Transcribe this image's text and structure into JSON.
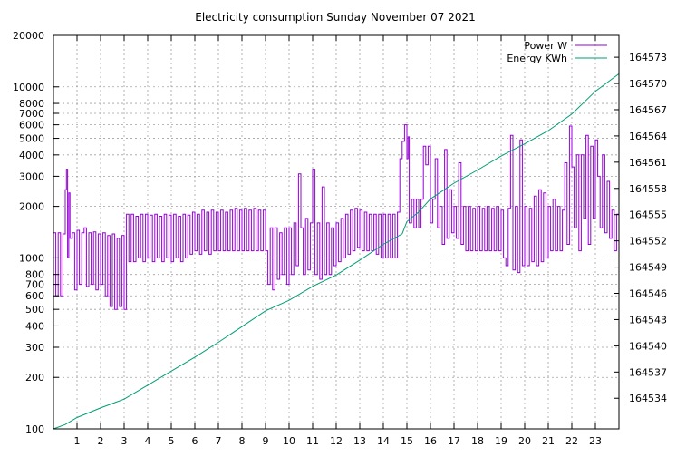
{
  "chart_data": {
    "type": "line",
    "title": "Electricity consumption Sunday November 07 2021",
    "legend_position": "top-right",
    "grid": true,
    "x": {
      "range": [
        0,
        24
      ],
      "tick_values": [
        1,
        2,
        3,
        4,
        5,
        6,
        7,
        8,
        9,
        10,
        11,
        12,
        13,
        14,
        15,
        16,
        17,
        18,
        19,
        20,
        21,
        22,
        23
      ],
      "tick_labels": [
        "1",
        "2",
        "3",
        "4",
        "5",
        "6",
        "7",
        "8",
        "9",
        "10",
        "11",
        "12",
        "13",
        "14",
        "15",
        "16",
        "17",
        "18",
        "19",
        "20",
        "21",
        "22",
        "23"
      ]
    },
    "y_left": {
      "scale": "log",
      "range": [
        100,
        20000
      ],
      "tick_values": [
        100,
        200,
        300,
        400,
        500,
        600,
        700,
        800,
        1000,
        2000,
        3000,
        4000,
        5000,
        6000,
        7000,
        8000,
        10000,
        20000
      ],
      "tick_labels": [
        "100",
        "200",
        "300",
        "400",
        "500",
        "600",
        "700",
        "800",
        "1000",
        "2000",
        "3000",
        "4000",
        "5000",
        "6000",
        "7000",
        "8000",
        "10000",
        "20000"
      ]
    },
    "y_right": {
      "scale": "linear",
      "range": [
        164530.5,
        164575.5
      ],
      "tick_values": [
        164534,
        164537,
        164540,
        164543,
        164546,
        164549,
        164552,
        164555,
        164558,
        164561,
        164564,
        164567,
        164570,
        164573
      ],
      "tick_labels": [
        "164534",
        "164537",
        "164540",
        "164543",
        "164546",
        "164549",
        "164552",
        "164555",
        "164558",
        "164561",
        "164564",
        "164567",
        "164570",
        "164573"
      ]
    },
    "series": [
      {
        "name": "Power W",
        "axis": "left",
        "color": "#9400d3",
        "style": "step",
        "points": [
          [
            0.0,
            1400
          ],
          [
            0.1,
            600
          ],
          [
            0.2,
            1400
          ],
          [
            0.3,
            600
          ],
          [
            0.4,
            1380
          ],
          [
            0.5,
            2500
          ],
          [
            0.55,
            3300
          ],
          [
            0.6,
            1000
          ],
          [
            0.65,
            2400
          ],
          [
            0.7,
            1300
          ],
          [
            0.8,
            1400
          ],
          [
            0.9,
            650
          ],
          [
            1.0,
            1450
          ],
          [
            1.1,
            700
          ],
          [
            1.2,
            1400
          ],
          [
            1.3,
            1500
          ],
          [
            1.4,
            680
          ],
          [
            1.5,
            1400
          ],
          [
            1.6,
            700
          ],
          [
            1.7,
            1420
          ],
          [
            1.8,
            650
          ],
          [
            1.9,
            1380
          ],
          [
            2.0,
            700
          ],
          [
            2.1,
            1400
          ],
          [
            2.2,
            600
          ],
          [
            2.3,
            1350
          ],
          [
            2.4,
            520
          ],
          [
            2.5,
            1380
          ],
          [
            2.6,
            500
          ],
          [
            2.7,
            1300
          ],
          [
            2.8,
            520
          ],
          [
            2.9,
            1350
          ],
          [
            3.0,
            500
          ],
          [
            3.1,
            1800
          ],
          [
            3.2,
            950
          ],
          [
            3.3,
            1800
          ],
          [
            3.4,
            950
          ],
          [
            3.5,
            1750
          ],
          [
            3.6,
            1000
          ],
          [
            3.7,
            1800
          ],
          [
            3.8,
            950
          ],
          [
            3.9,
            1800
          ],
          [
            4.0,
            1000
          ],
          [
            4.1,
            1780
          ],
          [
            4.2,
            950
          ],
          [
            4.3,
            1800
          ],
          [
            4.4,
            1000
          ],
          [
            4.5,
            1750
          ],
          [
            4.6,
            950
          ],
          [
            4.7,
            1800
          ],
          [
            4.8,
            1000
          ],
          [
            4.9,
            1780
          ],
          [
            5.0,
            950
          ],
          [
            5.1,
            1800
          ],
          [
            5.2,
            1000
          ],
          [
            5.3,
            1750
          ],
          [
            5.4,
            950
          ],
          [
            5.5,
            1800
          ],
          [
            5.6,
            1000
          ],
          [
            5.7,
            1780
          ],
          [
            5.8,
            1050
          ],
          [
            5.9,
            1850
          ],
          [
            6.0,
            1100
          ],
          [
            6.1,
            1800
          ],
          [
            6.2,
            1050
          ],
          [
            6.3,
            1900
          ],
          [
            6.4,
            1100
          ],
          [
            6.5,
            1850
          ],
          [
            6.6,
            1050
          ],
          [
            6.7,
            1900
          ],
          [
            6.8,
            1100
          ],
          [
            6.9,
            1850
          ],
          [
            7.0,
            1100
          ],
          [
            7.1,
            1900
          ],
          [
            7.2,
            1100
          ],
          [
            7.3,
            1850
          ],
          [
            7.4,
            1100
          ],
          [
            7.5,
            1900
          ],
          [
            7.6,
            1100
          ],
          [
            7.7,
            1950
          ],
          [
            7.8,
            1100
          ],
          [
            7.9,
            1900
          ],
          [
            8.0,
            1100
          ],
          [
            8.1,
            1950
          ],
          [
            8.2,
            1100
          ],
          [
            8.3,
            1900
          ],
          [
            8.4,
            1100
          ],
          [
            8.5,
            1950
          ],
          [
            8.6,
            1100
          ],
          [
            8.7,
            1900
          ],
          [
            8.8,
            1100
          ],
          [
            8.9,
            1900
          ],
          [
            9.0,
            1100
          ],
          [
            9.1,
            700
          ],
          [
            9.2,
            1500
          ],
          [
            9.3,
            650
          ],
          [
            9.4,
            1500
          ],
          [
            9.5,
            750
          ],
          [
            9.6,
            1400
          ],
          [
            9.7,
            800
          ],
          [
            9.8,
            1500
          ],
          [
            9.9,
            700
          ],
          [
            10.0,
            1500
          ],
          [
            10.1,
            800
          ],
          [
            10.2,
            1600
          ],
          [
            10.3,
            900
          ],
          [
            10.4,
            3100
          ],
          [
            10.5,
            1500
          ],
          [
            10.6,
            800
          ],
          [
            10.7,
            1700
          ],
          [
            10.8,
            850
          ],
          [
            10.9,
            1600
          ],
          [
            11.0,
            3300
          ],
          [
            11.1,
            800
          ],
          [
            11.2,
            1600
          ],
          [
            11.3,
            750
          ],
          [
            11.4,
            2600
          ],
          [
            11.5,
            800
          ],
          [
            11.6,
            1600
          ],
          [
            11.7,
            800
          ],
          [
            11.8,
            1500
          ],
          [
            11.9,
            900
          ],
          [
            12.0,
            1600
          ],
          [
            12.1,
            950
          ],
          [
            12.2,
            1700
          ],
          [
            12.3,
            1000
          ],
          [
            12.4,
            1800
          ],
          [
            12.5,
            1050
          ],
          [
            12.6,
            1900
          ],
          [
            12.7,
            1100
          ],
          [
            12.8,
            1950
          ],
          [
            12.9,
            1150
          ],
          [
            13.0,
            1900
          ],
          [
            13.1,
            1100
          ],
          [
            13.2,
            1850
          ],
          [
            13.3,
            1100
          ],
          [
            13.4,
            1800
          ],
          [
            13.5,
            1100
          ],
          [
            13.6,
            1800
          ],
          [
            13.7,
            1050
          ],
          [
            13.8,
            1800
          ],
          [
            13.9,
            1000
          ],
          [
            14.0,
            1800
          ],
          [
            14.1,
            1000
          ],
          [
            14.2,
            1800
          ],
          [
            14.3,
            1000
          ],
          [
            14.4,
            1800
          ],
          [
            14.5,
            1000
          ],
          [
            14.6,
            1850
          ],
          [
            14.7,
            3800
          ],
          [
            14.8,
            4800
          ],
          [
            14.9,
            6000
          ],
          [
            15.0,
            3800
          ],
          [
            15.05,
            5100
          ],
          [
            15.1,
            1600
          ],
          [
            15.2,
            2200
          ],
          [
            15.3,
            1500
          ],
          [
            15.4,
            2200
          ],
          [
            15.5,
            1500
          ],
          [
            15.6,
            2200
          ],
          [
            15.7,
            4500
          ],
          [
            15.8,
            3500
          ],
          [
            15.9,
            4500
          ],
          [
            16.0,
            1600
          ],
          [
            16.1,
            2200
          ],
          [
            16.2,
            3800
          ],
          [
            16.3,
            1500
          ],
          [
            16.4,
            2000
          ],
          [
            16.5,
            1200
          ],
          [
            16.6,
            4300
          ],
          [
            16.7,
            1300
          ],
          [
            16.8,
            2500
          ],
          [
            16.9,
            1400
          ],
          [
            17.0,
            2000
          ],
          [
            17.1,
            1300
          ],
          [
            17.2,
            3600
          ],
          [
            17.3,
            1200
          ],
          [
            17.4,
            2000
          ],
          [
            17.5,
            1100
          ],
          [
            17.6,
            2000
          ],
          [
            17.7,
            1100
          ],
          [
            17.8,
            1950
          ],
          [
            17.9,
            1100
          ],
          [
            18.0,
            2000
          ],
          [
            18.1,
            1100
          ],
          [
            18.2,
            1950
          ],
          [
            18.3,
            1100
          ],
          [
            18.4,
            2000
          ],
          [
            18.5,
            1100
          ],
          [
            18.6,
            1950
          ],
          [
            18.7,
            1100
          ],
          [
            18.8,
            2000
          ],
          [
            18.9,
            1100
          ],
          [
            19.0,
            1900
          ],
          [
            19.1,
            1000
          ],
          [
            19.2,
            900
          ],
          [
            19.3,
            1950
          ],
          [
            19.4,
            5200
          ],
          [
            19.5,
            850
          ],
          [
            19.6,
            2000
          ],
          [
            19.7,
            820
          ],
          [
            19.8,
            4900
          ],
          [
            19.9,
            900
          ],
          [
            20.0,
            2000
          ],
          [
            20.1,
            900
          ],
          [
            20.2,
            1950
          ],
          [
            20.3,
            950
          ],
          [
            20.4,
            2300
          ],
          [
            20.5,
            900
          ],
          [
            20.6,
            2500
          ],
          [
            20.7,
            950
          ],
          [
            20.8,
            2400
          ],
          [
            20.9,
            1000
          ],
          [
            21.0,
            2000
          ],
          [
            21.1,
            1100
          ],
          [
            21.2,
            2200
          ],
          [
            21.3,
            1100
          ],
          [
            21.4,
            2000
          ],
          [
            21.5,
            1100
          ],
          [
            21.6,
            1900
          ],
          [
            21.7,
            3600
          ],
          [
            21.8,
            1200
          ],
          [
            21.9,
            5900
          ],
          [
            22.0,
            3400
          ],
          [
            22.1,
            1500
          ],
          [
            22.2,
            4000
          ],
          [
            22.3,
            1100
          ],
          [
            22.4,
            4000
          ],
          [
            22.5,
            1700
          ],
          [
            22.6,
            5200
          ],
          [
            22.7,
            1200
          ],
          [
            22.8,
            4500
          ],
          [
            22.9,
            1700
          ],
          [
            23.0,
            4900
          ],
          [
            23.1,
            3000
          ],
          [
            23.2,
            1500
          ],
          [
            23.3,
            4000
          ],
          [
            23.4,
            1400
          ],
          [
            23.5,
            2800
          ],
          [
            23.6,
            1300
          ],
          [
            23.7,
            1900
          ],
          [
            23.8,
            1100
          ],
          [
            23.9,
            1800
          ],
          [
            24.0,
            1800
          ]
        ]
      },
      {
        "name": "Energy KWh",
        "axis": "right",
        "color": "#009e73",
        "style": "line",
        "points": [
          [
            0.0,
            164530.5
          ],
          [
            0.5,
            164531.0
          ],
          [
            1.0,
            164531.8
          ],
          [
            2.0,
            164532.9
          ],
          [
            3.0,
            164533.9
          ],
          [
            4.0,
            164535.5
          ],
          [
            5.0,
            164537.1
          ],
          [
            6.0,
            164538.7
          ],
          [
            7.0,
            164540.4
          ],
          [
            8.0,
            164542.2
          ],
          [
            9.0,
            164544.0
          ],
          [
            10.0,
            164545.2
          ],
          [
            11.0,
            164546.8
          ],
          [
            12.0,
            164548.1
          ],
          [
            13.0,
            164549.8
          ],
          [
            14.0,
            164551.6
          ],
          [
            14.8,
            164552.8
          ],
          [
            15.0,
            164554.2
          ],
          [
            15.5,
            164555.3
          ],
          [
            16.0,
            164556.8
          ],
          [
            16.5,
            164557.7
          ],
          [
            17.0,
            164558.6
          ],
          [
            18.0,
            164560.1
          ],
          [
            19.0,
            164561.7
          ],
          [
            20.0,
            164563.1
          ],
          [
            21.0,
            164564.6
          ],
          [
            22.0,
            164566.5
          ],
          [
            23.0,
            164569.1
          ],
          [
            24.0,
            164571.1
          ]
        ]
      }
    ]
  }
}
